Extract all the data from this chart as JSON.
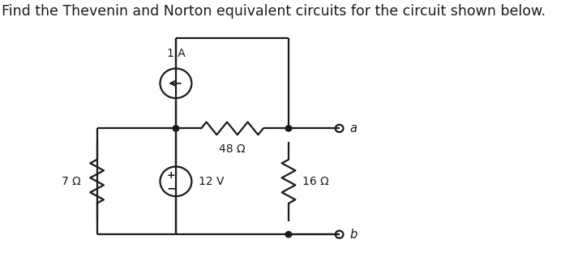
{
  "title": "Find the Thevenin and Norton equivalent circuits for the circuit shown below.",
  "title_fontsize": 12.5,
  "bg_color": "#ffffff",
  "circuit_color": "#1a1a1a",
  "resistor_7": "7 Ω",
  "resistor_48": "48 Ω",
  "resistor_16": "16 Ω",
  "voltage_source": "12 V",
  "current_source": "1 A",
  "terminal_a": "a",
  "terminal_b": "b",
  "lw": 1.6,
  "dot_r": 0.055,
  "term_r": 0.07,
  "vs_r": 0.28,
  "cs_r": 0.28,
  "xl2": 1.7,
  "xm": 3.1,
  "xmr": 5.1,
  "xr": 6.0,
  "yb": 0.8,
  "ymid": 2.8,
  "ytop": 4.5
}
